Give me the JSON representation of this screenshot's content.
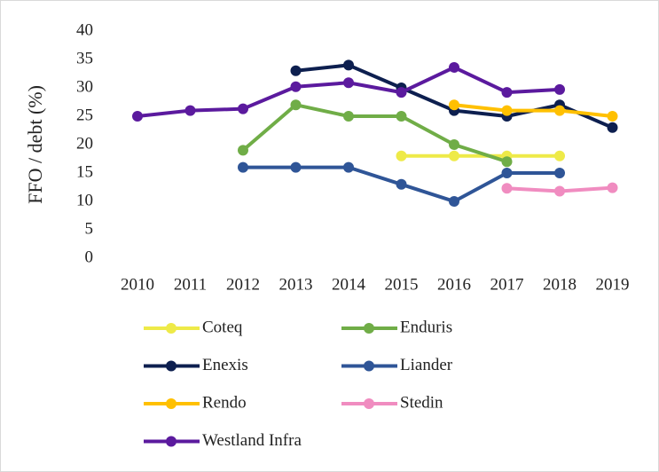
{
  "chart_data": {
    "type": "line",
    "y_label": "FFO / debt (%)",
    "categories": [
      "2010",
      "2011",
      "2012",
      "2013",
      "2014",
      "2015",
      "2016",
      "2017",
      "2018",
      "2019"
    ],
    "ylim": [
      0,
      40
    ],
    "yticks": [
      0,
      5,
      10,
      15,
      20,
      25,
      30,
      35,
      40
    ],
    "series": [
      {
        "name": "Coteq",
        "color": "#eeea48",
        "values": [
          null,
          null,
          null,
          null,
          null,
          18,
          18,
          18,
          18,
          null
        ]
      },
      {
        "name": "Enduris",
        "color": "#70ad47",
        "values": [
          null,
          null,
          19,
          27,
          25,
          25,
          20,
          17,
          null,
          null
        ]
      },
      {
        "name": "Enexis",
        "color": "#0d1f4f",
        "values": [
          null,
          null,
          null,
          33,
          34,
          30,
          26,
          25,
          27,
          23
        ]
      },
      {
        "name": "Liander",
        "color": "#2f5597",
        "values": [
          null,
          null,
          16,
          16,
          16,
          13,
          10,
          15,
          15,
          null
        ]
      },
      {
        "name": "Rendo",
        "color": "#ffc000",
        "values": [
          null,
          null,
          null,
          null,
          null,
          null,
          27,
          26,
          26,
          25
        ]
      },
      {
        "name": "Stedin",
        "color": "#f08cc0",
        "values": [
          null,
          null,
          null,
          null,
          null,
          null,
          null,
          12.3,
          11.8,
          12.4
        ]
      },
      {
        "name": "Westland Infra",
        "color": "#5b1a9e",
        "values": [
          25,
          26,
          26.3,
          30.2,
          30.9,
          29.2,
          33.6,
          29.2,
          29.7,
          null
        ]
      }
    ]
  }
}
